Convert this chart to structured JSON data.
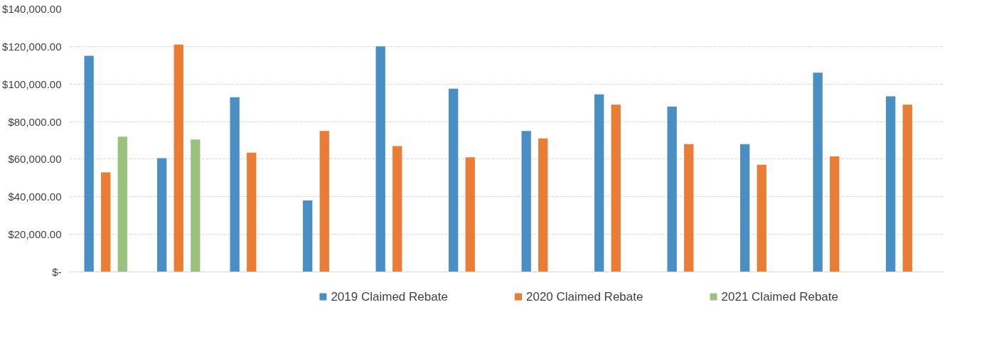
{
  "chart_data": {
    "type": "bar",
    "categories": [
      null,
      null,
      null,
      null,
      null,
      null,
      null,
      null,
      null,
      null,
      null,
      null
    ],
    "series": [
      {
        "name": "2019 Claimed Rebate",
        "color": "#4a8fc4",
        "values": [
          115000,
          60500,
          93000,
          38000,
          120000,
          97500,
          75000,
          94500,
          88000,
          68000,
          106000,
          93500
        ]
      },
      {
        "name": "2020 Claimed Rebate",
        "color": "#e97d35",
        "values": [
          53000,
          121000,
          63500,
          75000,
          67000,
          61000,
          71000,
          89000,
          68000,
          57000,
          61500,
          89000
        ]
      },
      {
        "name": "2021 Claimed Rebate",
        "color": "#9bc17e",
        "values": [
          72000,
          70500,
          null,
          null,
          null,
          null,
          null,
          null,
          null,
          null,
          null,
          null
        ]
      }
    ],
    "ylim": [
      0,
      140000
    ],
    "yticks": [
      {
        "value": 0,
        "label": "$-"
      },
      {
        "value": 20000,
        "label": "$20,000.00"
      },
      {
        "value": 40000,
        "label": "$40,000.00"
      },
      {
        "value": 60000,
        "label": "$60,000.00"
      },
      {
        "value": 80000,
        "label": "$80,000.00"
      },
      {
        "value": 100000,
        "label": "$100,000.00"
      },
      {
        "value": 120000,
        "label": "$120,000.00"
      },
      {
        "value": 140000,
        "label": "$140,000.00"
      }
    ],
    "grid": "y",
    "legend": "bottom"
  }
}
